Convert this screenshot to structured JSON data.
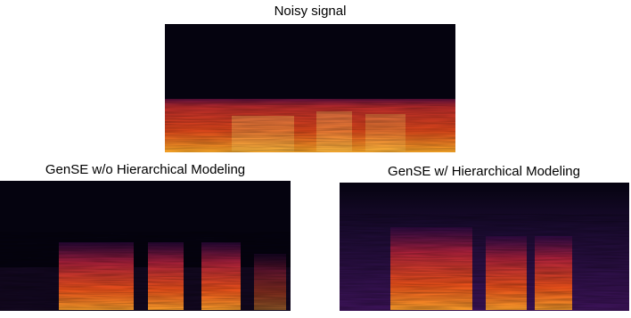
{
  "panels": [
    {
      "title": "Noisy signal"
    },
    {
      "title": "GenSE w/o Hierarchical Modeling"
    },
    {
      "title": "GenSE w/ Hierarchical Modeling"
    }
  ]
}
